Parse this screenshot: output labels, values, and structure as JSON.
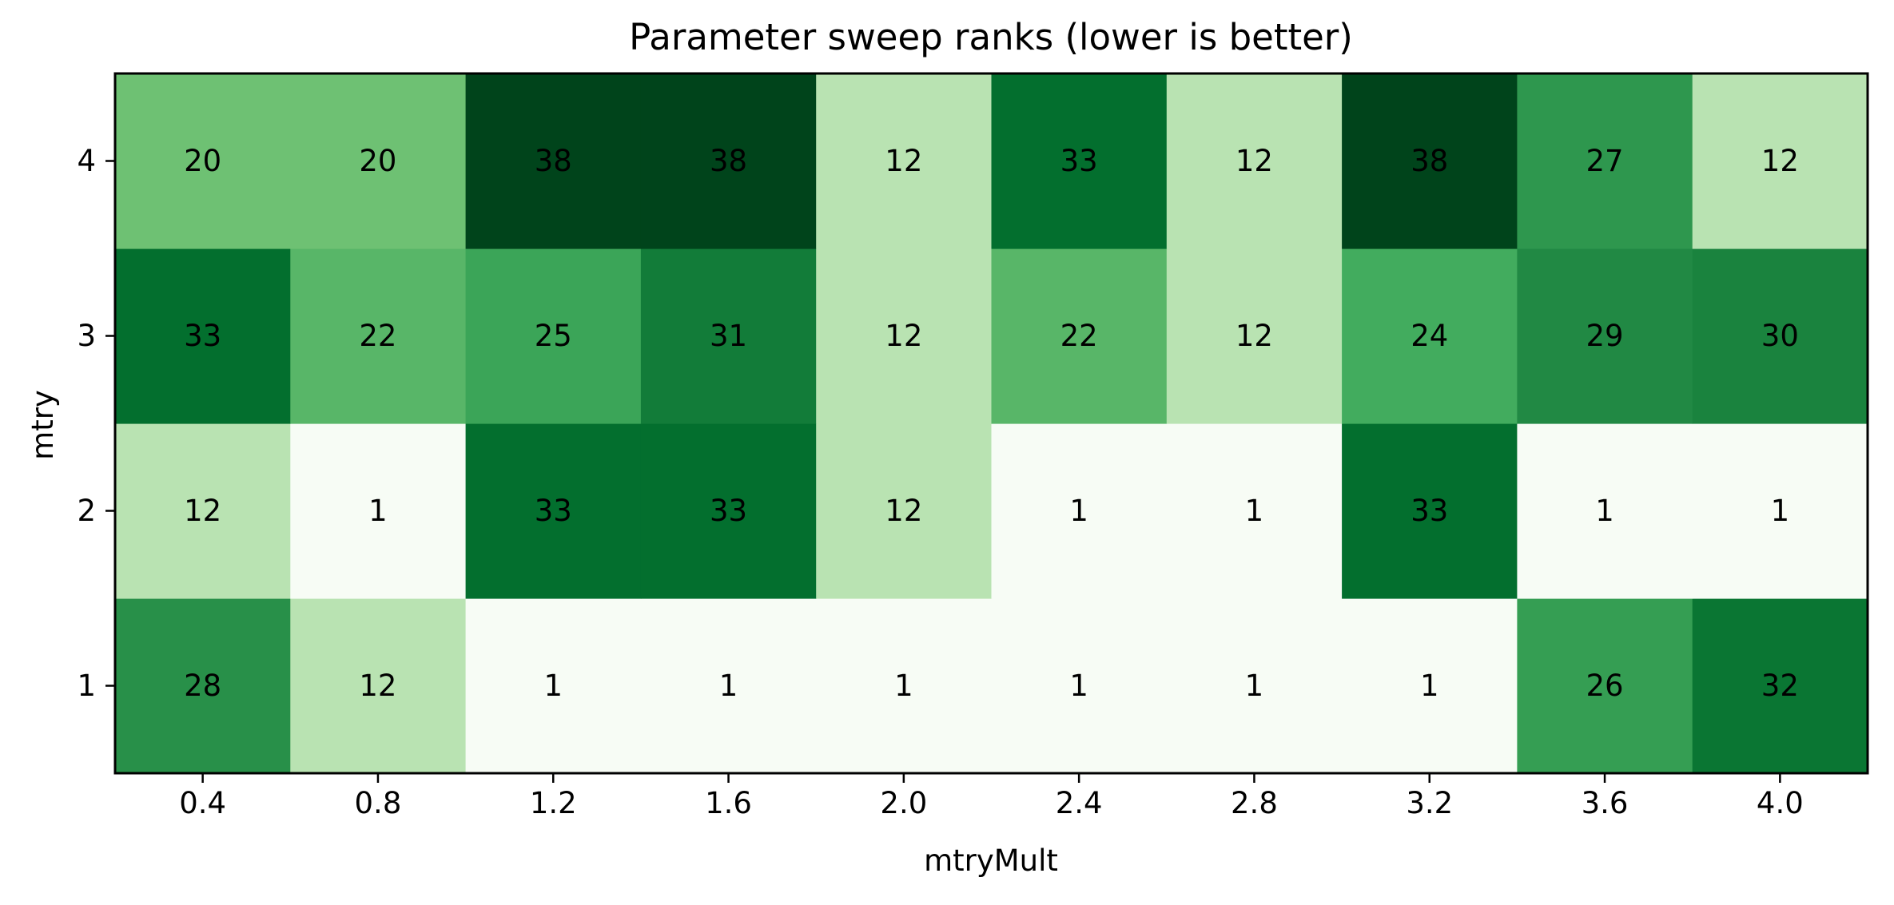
{
  "chart_data": {
    "type": "heatmap",
    "title": "Parameter sweep ranks (lower is better)",
    "xlabel": "mtryMult",
    "ylabel": "mtry",
    "x_categories": [
      "0.4",
      "0.8",
      "1.2",
      "1.6",
      "2.0",
      "2.4",
      "2.8",
      "3.2",
      "3.6",
      "4.0"
    ],
    "y_categories": [
      "1",
      "2",
      "3",
      "4"
    ],
    "values": [
      [
        28,
        12,
        1,
        1,
        1,
        1,
        1,
        1,
        26,
        32
      ],
      [
        12,
        1,
        33,
        33,
        12,
        1,
        1,
        33,
        1,
        1
      ],
      [
        33,
        22,
        25,
        31,
        12,
        22,
        12,
        24,
        29,
        30
      ],
      [
        20,
        20,
        38,
        38,
        12,
        33,
        12,
        38,
        27,
        12
      ]
    ],
    "colormap": "Greens",
    "value_range": [
      1,
      38
    ],
    "cell_labels": true,
    "legend": false,
    "grid": false
  }
}
